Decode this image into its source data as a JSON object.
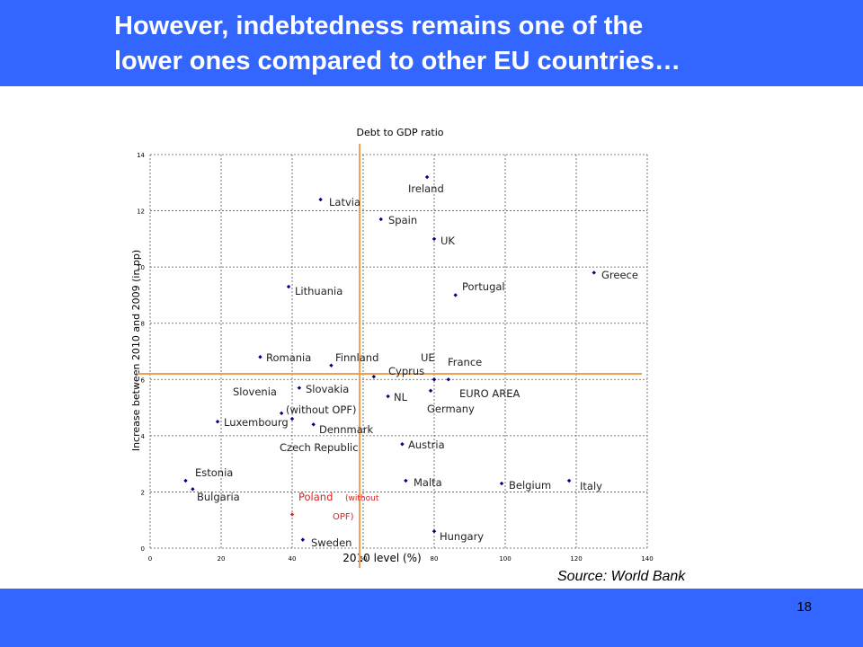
{
  "slide": {
    "title_line1": "However, indebtedness remains one of the",
    "title_line2": "lower ones compared to other EU countries…",
    "source": "Source: World Bank",
    "page_number": "18",
    "header_color": "#3366ff"
  },
  "chart_data": {
    "type": "scatter",
    "title": "Debt to GDP ratio",
    "xlabel": "2010 level (%)",
    "ylabel": "Increase between 2010 and 2009 (in pp)",
    "xlim": [
      0,
      140
    ],
    "ylim": [
      0,
      14
    ],
    "xticks": [
      0,
      20,
      40,
      60,
      80,
      100,
      120,
      140
    ],
    "yticks": [
      0,
      2,
      4,
      6,
      8,
      10,
      12,
      14
    ],
    "grid": true,
    "grid_style": "dotted",
    "reference_lines": {
      "x": 59,
      "y": 6.2,
      "color": "#f0a050"
    },
    "point_color": "#00008b",
    "highlight_color": "#e02020",
    "points": [
      {
        "name": "Ireland",
        "x": 78,
        "y": 13.2
      },
      {
        "name": "Latvia",
        "x": 48,
        "y": 12.4
      },
      {
        "name": "Spain",
        "x": 65,
        "y": 11.7
      },
      {
        "name": "UK",
        "x": 80,
        "y": 11.0
      },
      {
        "name": "Greece",
        "x": 125,
        "y": 9.8
      },
      {
        "name": "Lithuania",
        "x": 39,
        "y": 9.3
      },
      {
        "name": "Portugal",
        "x": 86,
        "y": 9.0
      },
      {
        "name": "Romania",
        "x": 31,
        "y": 6.8
      },
      {
        "name": "Finnland",
        "x": 51,
        "y": 6.5
      },
      {
        "name": "UE",
        "x": 80,
        "y": 6.0
      },
      {
        "name": "France",
        "x": 84,
        "y": 6.0
      },
      {
        "name": "Cyprus",
        "x": 63,
        "y": 6.1
      },
      {
        "name": "Slovakia",
        "x": 42,
        "y": 5.7
      },
      {
        "name": "NL",
        "x": 67,
        "y": 5.4
      },
      {
        "name": "EURO AREA",
        "x": 79,
        "y": 5.6
      },
      {
        "name": "Germany",
        "x": 80,
        "y": 6.0
      },
      {
        "name": "Slovenia",
        "x": 37,
        "y": 4.8
      },
      {
        "name": "Luxembourg",
        "x": 19,
        "y": 4.5
      },
      {
        "name": "Dennmark",
        "x": 46,
        "y": 4.4
      },
      {
        "name": "Czech Republic",
        "x": 40,
        "y": 4.6
      },
      {
        "name": "Austria",
        "x": 71,
        "y": 3.7
      },
      {
        "name": "Estonia",
        "x": 10,
        "y": 2.4
      },
      {
        "name": "Bulgaria",
        "x": 12,
        "y": 2.1
      },
      {
        "name": "Malta",
        "x": 72,
        "y": 2.4
      },
      {
        "name": "Belgium",
        "x": 99,
        "y": 2.3
      },
      {
        "name": "Italy",
        "x": 118,
        "y": 2.4
      },
      {
        "name": "Poland (without OPF)",
        "x": 40,
        "y": 1.2,
        "highlight": true
      },
      {
        "name": "Hungary",
        "x": 80,
        "y": 0.6
      },
      {
        "name": "Sweden",
        "x": 43,
        "y": 0.3
      }
    ],
    "labels": {
      "Ireland": "Ireland",
      "Latvia": "Latvia",
      "Spain": "Spain",
      "UK": "UK",
      "Greece": "Greece",
      "Lithuania": "Lithuania",
      "Portugal": "Portugal",
      "Romania": "Romania",
      "Finnland": "Finnland",
      "UE": "UE",
      "France": "France",
      "Cyprus": "Cyprus",
      "Slovenia": "Slovenia",
      "Slovakia": "Slovakia",
      "Slovakia_sub": "(without OPF)",
      "NL": "NL",
      "EURO AREA": "EURO AREA",
      "Germany": "Germany",
      "Luxembourg": "Luxembourg",
      "Dennmark": "Dennmark",
      "Czech Republic": "Czech Republic",
      "Austria": "Austria",
      "Estonia": "Estonia",
      "Bulgaria": "Bulgaria",
      "Malta": "Malta",
      "Belgium": "Belgium",
      "Italy": "Italy",
      "Poland_main": "Poland",
      "Poland_sub1": "(without",
      "Poland_sub2": "OPF)",
      "Hungary": "Hungary",
      "Sweden": "Sweden"
    }
  }
}
